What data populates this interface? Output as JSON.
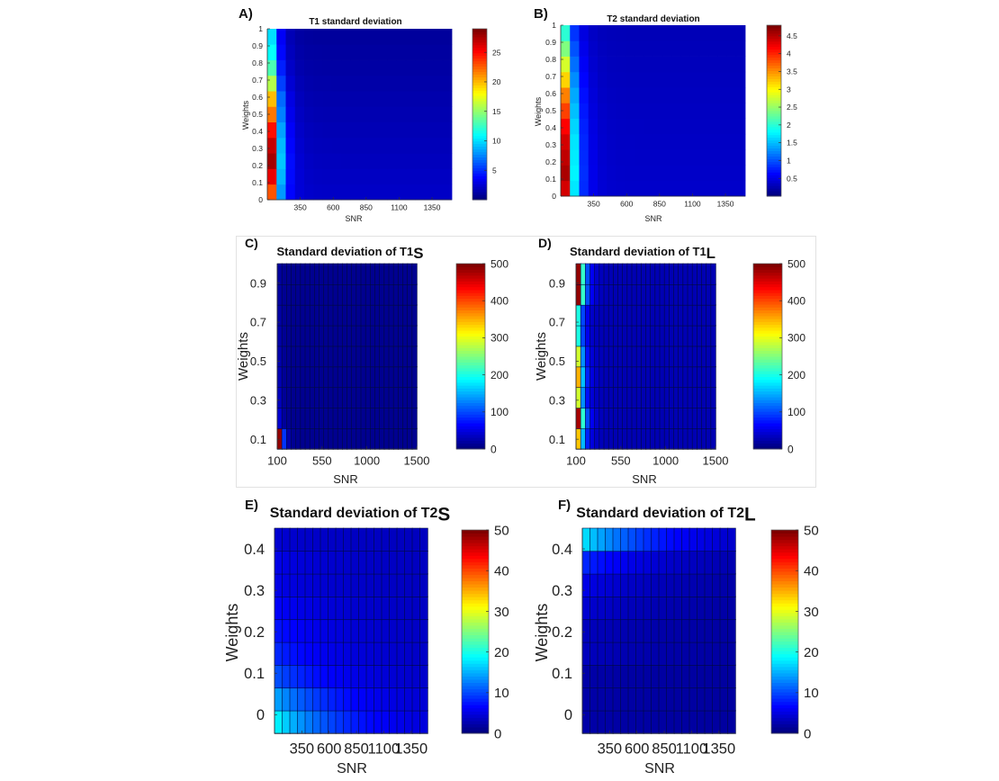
{
  "chart_data": [
    {
      "panel_label": "A)",
      "type": "heatmap",
      "title": "T1 standard deviation",
      "title_suffix": "",
      "xlabel": "SNR",
      "ylabel": "Weights",
      "x_tick_labels": [
        "350",
        "600",
        "850",
        "1100",
        "1350"
      ],
      "x_tick_values": [
        350,
        600,
        850,
        1100,
        1350
      ],
      "y_tick_labels": [
        "0",
        "0.1",
        "0.2",
        "0.3",
        "0.4",
        "0.5",
        "0.6",
        "0.7",
        "0.8",
        "0.9",
        "1"
      ],
      "y_tick_values": [
        0,
        0.1,
        0.2,
        0.3,
        0.4,
        0.5,
        0.6,
        0.7,
        0.8,
        0.9,
        1
      ],
      "x_range": [
        100,
        1500
      ],
      "y_range": [
        0,
        1
      ],
      "x_bins": 20,
      "y_bins": 11,
      "colorbar": {
        "range": [
          0,
          29
        ],
        "tick_labels": [
          "5",
          "10",
          "15",
          "20",
          "25"
        ],
        "tick_values": [
          5,
          10,
          15,
          20,
          25
        ],
        "colormap": "jet"
      },
      "cell_lines": false,
      "first_column_values": [
        23,
        26,
        28,
        27,
        25,
        22,
        20,
        16,
        13,
        11,
        10
      ],
      "decay": {
        "base_rate": 1.25,
        "floor": 2.0,
        "weight_drop": 1.2
      }
    },
    {
      "panel_label": "B)",
      "type": "heatmap",
      "title": "T2 standard deviation",
      "title_suffix": "",
      "xlabel": "SNR",
      "ylabel": "Weights",
      "x_tick_labels": [
        "350",
        "600",
        "850",
        "1100",
        "1350"
      ],
      "x_tick_values": [
        350,
        600,
        850,
        1100,
        1350
      ],
      "y_tick_labels": [
        "0",
        "0.1",
        "0.2",
        "0.3",
        "0.4",
        "0.5",
        "0.6",
        "0.7",
        "0.8",
        "0.9",
        "1"
      ],
      "y_tick_values": [
        0,
        0.1,
        0.2,
        0.3,
        0.4,
        0.5,
        0.6,
        0.7,
        0.8,
        0.9,
        1
      ],
      "x_range": [
        100,
        1500
      ],
      "y_range": [
        0,
        1
      ],
      "x_bins": 20,
      "y_bins": 11,
      "colorbar": {
        "range": [
          0,
          4.8
        ],
        "tick_labels": [
          "0.5",
          "1",
          "1.5",
          "2",
          "2.5",
          "3",
          "3.5",
          "4",
          "4.5"
        ],
        "tick_values": [
          0.5,
          1,
          1.5,
          2,
          2.5,
          3,
          3.5,
          4,
          4.5
        ],
        "colormap": "jet"
      },
      "cell_lines": false,
      "first_column_values": [
        4.4,
        4.6,
        4.5,
        4.4,
        4.2,
        3.9,
        3.6,
        3.2,
        2.8,
        2.4,
        2.0
      ],
      "decay": {
        "base_rate": 1.1,
        "floor": 0.35,
        "weight_drop": 0.5
      }
    },
    {
      "panel_label": "C)",
      "type": "heatmap",
      "title": "Standard deviation of T1",
      "title_suffix": "S",
      "xlabel": "SNR",
      "ylabel": "Weights",
      "x_tick_labels": [
        "100",
        "550",
        "1000",
        "1500"
      ],
      "x_tick_values": [
        100,
        550,
        1000,
        1500
      ],
      "y_tick_labels": [
        "0.1",
        "0.3",
        "0.5",
        "0.7",
        "0.9"
      ],
      "y_tick_values": [
        0.1,
        0.3,
        0.5,
        0.7,
        0.9
      ],
      "x_range": [
        100,
        1500
      ],
      "y_range": [
        0.05,
        1.0
      ],
      "x_bins": 30,
      "y_bins": 9,
      "colorbar": {
        "range": [
          0,
          500
        ],
        "tick_labels": [
          "0",
          "100",
          "200",
          "300",
          "400",
          "500"
        ],
        "tick_values": [
          0,
          100,
          200,
          300,
          400,
          500
        ],
        "colormap": "jet"
      },
      "cell_lines": true,
      "first_column_values": [
        490,
        40,
        30,
        25,
        22,
        20,
        18,
        16,
        15
      ],
      "decay": {
        "base_rate": 1.8,
        "floor": 8,
        "weight_drop": 0
      }
    },
    {
      "panel_label": "D)",
      "type": "heatmap",
      "title": "Standard deviation of T1",
      "title_suffix": "L",
      "xlabel": "SNR",
      "ylabel": "Weights",
      "x_tick_labels": [
        "100",
        "550",
        "1000",
        "1500"
      ],
      "x_tick_values": [
        100,
        550,
        1000,
        1500
      ],
      "y_tick_labels": [
        "0.1",
        "0.3",
        "0.5",
        "0.7",
        "0.9"
      ],
      "y_tick_values": [
        0.1,
        0.3,
        0.5,
        0.7,
        0.9
      ],
      "x_range": [
        100,
        1500
      ],
      "y_range": [
        0.05,
        1.0
      ],
      "x_bins": 30,
      "y_bins": 9,
      "colorbar": {
        "range": [
          0,
          500
        ],
        "tick_labels": [
          "0",
          "100",
          "200",
          "300",
          "400",
          "500"
        ],
        "tick_values": [
          0,
          100,
          200,
          300,
          400,
          500
        ],
        "colormap": "jet"
      },
      "cell_lines": true,
      "first_column_values": [
        340,
        480,
        290,
        350,
        290,
        200,
        200,
        490,
        490
      ],
      "decay": {
        "base_rate": 0.9,
        "floor": 25,
        "weight_drop": 0
      }
    },
    {
      "panel_label": "E)",
      "type": "heatmap",
      "title": "Standard deviation of T2",
      "title_suffix": "S",
      "xlabel": "SNR",
      "ylabel": "Weights",
      "x_tick_labels": [
        "350",
        "600",
        "850",
        "1100",
        "1350"
      ],
      "x_tick_values": [
        350,
        600,
        850,
        1100,
        1350
      ],
      "y_tick_labels": [
        "0",
        "0.1",
        "0.2",
        "0.3",
        "0.4"
      ],
      "y_tick_values": [
        0,
        0.1,
        0.2,
        0.3,
        0.4
      ],
      "x_range": [
        100,
        1500
      ],
      "y_range": [
        -0.045,
        0.45
      ],
      "x_bins": 20,
      "y_bins": 9,
      "colorbar": {
        "range": [
          0,
          50
        ],
        "tick_labels": [
          "0",
          "10",
          "20",
          "30",
          "40",
          "50"
        ],
        "tick_values": [
          0,
          10,
          20,
          30,
          40,
          50
        ],
        "colormap": "jet"
      },
      "cell_lines": true,
      "first_column_values": [
        18,
        14,
        10,
        8,
        7,
        6,
        5,
        5,
        4
      ],
      "decay": {
        "base_rate": 0.12,
        "floor": 3,
        "weight_drop": 0
      }
    },
    {
      "panel_label": "F)",
      "type": "heatmap",
      "title": "Standard deviation of T2",
      "title_suffix": "L",
      "xlabel": "SNR",
      "ylabel": "Weights",
      "x_tick_labels": [
        "350",
        "600",
        "850",
        "1100",
        "1350"
      ],
      "x_tick_values": [
        350,
        600,
        850,
        1100,
        1350
      ],
      "y_tick_labels": [
        "0",
        "0.1",
        "0.2",
        "0.3",
        "0.4"
      ],
      "y_tick_values": [
        0,
        0.1,
        0.2,
        0.3,
        0.4
      ],
      "x_range": [
        100,
        1500
      ],
      "y_range": [
        -0.045,
        0.45
      ],
      "x_bins": 20,
      "y_bins": 9,
      "colorbar": {
        "range": [
          0,
          50
        ],
        "tick_labels": [
          "0",
          "10",
          "20",
          "30",
          "40",
          "50"
        ],
        "tick_values": [
          0,
          10,
          20,
          30,
          40,
          50
        ],
        "colormap": "jet"
      },
      "cell_lines": true,
      "first_column_values": [
        2,
        2,
        2,
        3,
        3,
        4,
        5,
        8,
        17
      ],
      "decay": {
        "base_rate": 0.1,
        "floor": 1.5,
        "weight_drop": 0
      }
    }
  ]
}
